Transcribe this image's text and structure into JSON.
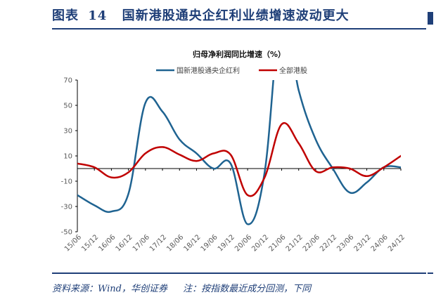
{
  "header": {
    "figure_label": "图表",
    "figure_number": "14",
    "title": "国新港股通央企红利业绩增速波动更大"
  },
  "footer": {
    "source": "资料来源：Wind，华创证券",
    "note": "注：按指数最近成分回测，下同"
  },
  "chart_data": {
    "type": "line",
    "title": "归母净利润同比增速（%）",
    "xlabel": "",
    "ylabel": "",
    "ylim": [
      -50,
      70
    ],
    "yticks": [
      -50,
      -30,
      -10,
      10,
      30,
      50,
      70
    ],
    "grid": false,
    "legend_position": "top-center",
    "categories": [
      "15/06",
      "15/12",
      "16/06",
      "16/12",
      "17/06",
      "17/12",
      "18/06",
      "18/12",
      "19/06",
      "19/12",
      "20/06",
      "20/12",
      "21/06",
      "21/12",
      "22/06",
      "22/12",
      "23/06",
      "23/12",
      "24/06",
      "24/12"
    ],
    "series": [
      {
        "name": "国新港股通央企红利",
        "color": "#1f6391",
        "values": [
          -21,
          -29,
          -34,
          -20,
          52,
          45,
          23,
          12,
          0,
          4,
          -44,
          -3,
          125,
          62,
          23,
          0,
          -19,
          -11,
          1,
          1
        ],
        "clipped_above": 70
      },
      {
        "name": "全部港股",
        "color": "#c00000",
        "values": [
          4,
          1,
          -7,
          -3,
          12,
          17,
          11,
          6,
          12,
          11,
          -21,
          -7,
          35,
          20,
          -2,
          1,
          0,
          -6,
          1,
          10
        ]
      }
    ]
  }
}
